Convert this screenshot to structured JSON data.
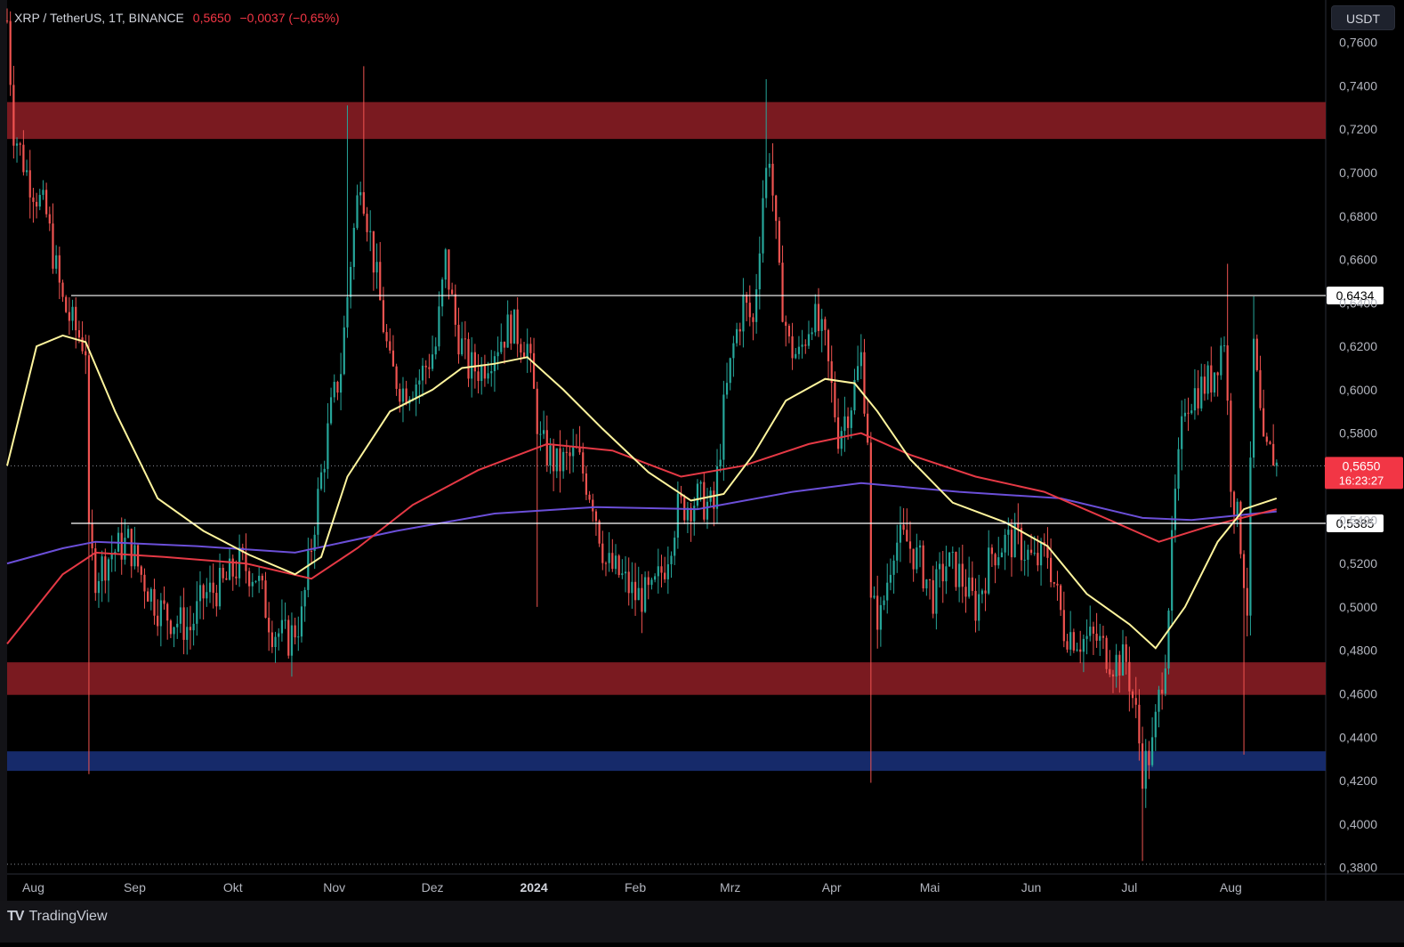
{
  "legend": {
    "symbol": "XRP / TetherUS, 1T, BINANCE",
    "last": "0,5650",
    "change": "−0,0037 (−0,65%)"
  },
  "currency_button": "USDT",
  "branding": {
    "name": "TradingView",
    "logo": "TV"
  },
  "colors": {
    "background": "#000000",
    "up": "#26a69a",
    "down": "#ef5350",
    "zone_red": "#7a1a20",
    "zone_blue": "#162a6a",
    "ma_yellow": "#fff59d",
    "ma_red": "#e53945",
    "ma_purple": "#6b4fd8",
    "hline": "#ffffff"
  },
  "chart_data": {
    "type": "candlestick",
    "symbol": "XRP / TetherUS",
    "interval": "1T",
    "exchange": "BINANCE",
    "ylim": [
      0.377,
      0.7795
    ],
    "y_ticks": [
      "0,3800",
      "0,4000",
      "0,4200",
      "0,4400",
      "0,4600",
      "0,4800",
      "0,5000",
      "0,5200",
      "0,5400",
      "0,5600",
      "0,5800",
      "0,6000",
      "0,6200",
      "0,6400",
      "0,6600",
      "0,6800",
      "0,7000",
      "0,7200",
      "0,7400",
      "0,7600"
    ],
    "x_range": [
      "2023-07-24",
      "2024-08-30"
    ],
    "x_ticks": [
      {
        "label": "Aug",
        "date": "2023-08-01"
      },
      {
        "label": "Sep",
        "date": "2023-09-01"
      },
      {
        "label": "Okt",
        "date": "2023-10-01"
      },
      {
        "label": "Nov",
        "date": "2023-11-01"
      },
      {
        "label": "Dez",
        "date": "2023-12-01"
      },
      {
        "label": "2024",
        "date": "2024-01-01",
        "bold": true
      },
      {
        "label": "Feb",
        "date": "2024-02-01"
      },
      {
        "label": "Mrz",
        "date": "2024-03-01"
      },
      {
        "label": "Apr",
        "date": "2024-04-01"
      },
      {
        "label": "Mai",
        "date": "2024-05-01"
      },
      {
        "label": "Jun",
        "date": "2024-06-01"
      },
      {
        "label": "Jul",
        "date": "2024-07-01"
      },
      {
        "label": "Aug",
        "date": "2024-08-01"
      }
    ],
    "close_path": [
      [
        "2023-07-24",
        0.77
      ],
      [
        "2023-07-26",
        0.72
      ],
      [
        "2023-07-30",
        0.7
      ],
      [
        "2023-08-05",
        0.68
      ],
      [
        "2023-08-08",
        0.655
      ],
      [
        "2023-08-10",
        0.64
      ],
      [
        "2023-08-13",
        0.63
      ],
      [
        "2023-08-17",
        0.62
      ],
      [
        "2023-08-18",
        0.53
      ],
      [
        "2023-08-20",
        0.515
      ],
      [
        "2023-08-25",
        0.525
      ],
      [
        "2023-08-30",
        0.53
      ],
      [
        "2023-09-03",
        0.515
      ],
      [
        "2023-09-08",
        0.5
      ],
      [
        "2023-09-12",
        0.495
      ],
      [
        "2023-09-18",
        0.49
      ],
      [
        "2023-09-22",
        0.505
      ],
      [
        "2023-09-28",
        0.51
      ],
      [
        "2023-10-03",
        0.52
      ],
      [
        "2023-10-08",
        0.515
      ],
      [
        "2023-10-13",
        0.49
      ],
      [
        "2023-10-18",
        0.485
      ],
      [
        "2023-10-22",
        0.495
      ],
      [
        "2023-10-26",
        0.54
      ],
      [
        "2023-10-31",
        0.59
      ],
      [
        "2023-11-03",
        0.61
      ],
      [
        "2023-11-06",
        0.66
      ],
      [
        "2023-11-09",
        0.7
      ],
      [
        "2023-11-12",
        0.67
      ],
      [
        "2023-11-15",
        0.64
      ],
      [
        "2023-11-18",
        0.61
      ],
      [
        "2023-11-22",
        0.6
      ],
      [
        "2023-11-27",
        0.605
      ],
      [
        "2023-12-02",
        0.62
      ],
      [
        "2023-12-05",
        0.66
      ],
      [
        "2023-12-08",
        0.63
      ],
      [
        "2023-12-12",
        0.61
      ],
      [
        "2023-12-16",
        0.61
      ],
      [
        "2023-12-20",
        0.62
      ],
      [
        "2023-12-25",
        0.63
      ],
      [
        "2023-12-30",
        0.62
      ],
      [
        "2024-01-03",
        0.575
      ],
      [
        "2024-01-08",
        0.565
      ],
      [
        "2024-01-14",
        0.57
      ],
      [
        "2024-01-19",
        0.55
      ],
      [
        "2024-01-23",
        0.52
      ],
      [
        "2024-01-27",
        0.515
      ],
      [
        "2024-02-01",
        0.505
      ],
      [
        "2024-02-06",
        0.505
      ],
      [
        "2024-02-10",
        0.52
      ],
      [
        "2024-02-14",
        0.545
      ],
      [
        "2024-02-20",
        0.55
      ],
      [
        "2024-02-25",
        0.545
      ],
      [
        "2024-02-28",
        0.59
      ],
      [
        "2024-03-02",
        0.62
      ],
      [
        "2024-03-05",
        0.64
      ],
      [
        "2024-03-08",
        0.63
      ],
      [
        "2024-03-11",
        0.69
      ],
      [
        "2024-03-13",
        0.71
      ],
      [
        "2024-03-16",
        0.65
      ],
      [
        "2024-03-19",
        0.62
      ],
      [
        "2024-03-22",
        0.615
      ],
      [
        "2024-03-26",
        0.635
      ],
      [
        "2024-03-30",
        0.62
      ],
      [
        "2024-04-03",
        0.58
      ],
      [
        "2024-04-07",
        0.595
      ],
      [
        "2024-04-10",
        0.615
      ],
      [
        "2024-04-12",
        0.58
      ],
      [
        "2024-04-13",
        0.5
      ],
      [
        "2024-04-16",
        0.495
      ],
      [
        "2024-04-20",
        0.53
      ],
      [
        "2024-04-24",
        0.53
      ],
      [
        "2024-04-28",
        0.52
      ],
      [
        "2024-05-02",
        0.505
      ],
      [
        "2024-05-06",
        0.52
      ],
      [
        "2024-05-10",
        0.515
      ],
      [
        "2024-05-15",
        0.5
      ],
      [
        "2024-05-20",
        0.525
      ],
      [
        "2024-05-24",
        0.53
      ],
      [
        "2024-05-28",
        0.53
      ],
      [
        "2024-06-02",
        0.52
      ],
      [
        "2024-06-06",
        0.525
      ],
      [
        "2024-06-11",
        0.49
      ],
      [
        "2024-06-16",
        0.485
      ],
      [
        "2024-06-21",
        0.485
      ],
      [
        "2024-06-26",
        0.475
      ],
      [
        "2024-06-30",
        0.475
      ],
      [
        "2024-07-03",
        0.45
      ],
      [
        "2024-07-05",
        0.425
      ],
      [
        "2024-07-08",
        0.435
      ],
      [
        "2024-07-12",
        0.48
      ],
      [
        "2024-07-15",
        0.55
      ],
      [
        "2024-07-18",
        0.595
      ],
      [
        "2024-07-22",
        0.6
      ],
      [
        "2024-07-26",
        0.605
      ],
      [
        "2024-07-30",
        0.625
      ],
      [
        "2024-08-01",
        0.56
      ],
      [
        "2024-08-04",
        0.53
      ],
      [
        "2024-08-06",
        0.5
      ],
      [
        "2024-08-08",
        0.62
      ],
      [
        "2024-08-11",
        0.57
      ],
      [
        "2024-08-14",
        0.57
      ],
      [
        "2024-08-15",
        0.565
      ]
    ],
    "spikes": [
      {
        "date": "2023-08-18",
        "low": 0.423
      },
      {
        "date": "2023-11-10",
        "high": 0.749
      },
      {
        "date": "2023-11-05",
        "high": 0.731
      },
      {
        "date": "2024-01-02",
        "low": 0.5
      },
      {
        "date": "2024-03-12",
        "high": 0.743
      },
      {
        "date": "2024-04-13",
        "low": 0.419
      },
      {
        "date": "2024-07-05",
        "low": 0.383
      },
      {
        "date": "2024-07-31",
        "high": 0.658
      },
      {
        "date": "2024-08-05",
        "low": 0.432
      },
      {
        "date": "2024-08-08",
        "high": 0.643
      }
    ],
    "ma_yellow": [
      [
        "2023-07-24",
        0.565
      ],
      [
        "2023-08-02",
        0.62
      ],
      [
        "2023-08-10",
        0.625
      ],
      [
        "2023-08-17",
        0.622
      ],
      [
        "2023-08-26",
        0.59
      ],
      [
        "2023-09-08",
        0.55
      ],
      [
        "2023-09-22",
        0.535
      ],
      [
        "2023-10-06",
        0.524
      ],
      [
        "2023-10-20",
        0.515
      ],
      [
        "2023-10-28",
        0.523
      ],
      [
        "2023-11-05",
        0.56
      ],
      [
        "2023-11-18",
        0.59
      ],
      [
        "2023-12-01",
        0.6
      ],
      [
        "2023-12-10",
        0.61
      ],
      [
        "2023-12-20",
        0.612
      ],
      [
        "2023-12-30",
        0.615
      ],
      [
        "2024-01-10",
        0.6
      ],
      [
        "2024-01-22",
        0.582
      ],
      [
        "2024-02-05",
        0.562
      ],
      [
        "2024-02-18",
        0.549
      ],
      [
        "2024-02-28",
        0.552
      ],
      [
        "2024-03-08",
        0.57
      ],
      [
        "2024-03-18",
        0.595
      ],
      [
        "2024-03-30",
        0.605
      ],
      [
        "2024-04-08",
        0.603
      ],
      [
        "2024-04-15",
        0.59
      ],
      [
        "2024-04-25",
        0.568
      ],
      [
        "2024-05-08",
        0.548
      ],
      [
        "2024-05-24",
        0.539
      ],
      [
        "2024-06-06",
        0.528
      ],
      [
        "2024-06-18",
        0.506
      ],
      [
        "2024-07-01",
        0.492
      ],
      [
        "2024-07-09",
        0.481
      ],
      [
        "2024-07-18",
        0.5
      ],
      [
        "2024-07-28",
        0.53
      ],
      [
        "2024-08-05",
        0.545
      ],
      [
        "2024-08-15",
        0.55
      ]
    ],
    "ma_red": [
      [
        "2023-07-24",
        0.483
      ],
      [
        "2023-08-10",
        0.515
      ],
      [
        "2023-08-20",
        0.525
      ],
      [
        "2023-09-10",
        0.523
      ],
      [
        "2023-10-05",
        0.52
      ],
      [
        "2023-10-25",
        0.513
      ],
      [
        "2023-11-08",
        0.527
      ],
      [
        "2023-11-25",
        0.547
      ],
      [
        "2023-12-15",
        0.563
      ],
      [
        "2024-01-05",
        0.575
      ],
      [
        "2024-01-25",
        0.572
      ],
      [
        "2024-02-15",
        0.56
      ],
      [
        "2024-03-05",
        0.565
      ],
      [
        "2024-03-25",
        0.575
      ],
      [
        "2024-04-10",
        0.58
      ],
      [
        "2024-04-25",
        0.57
      ],
      [
        "2024-05-15",
        0.56
      ],
      [
        "2024-06-05",
        0.553
      ],
      [
        "2024-06-25",
        0.54
      ],
      [
        "2024-07-10",
        0.53
      ],
      [
        "2024-07-25",
        0.537
      ],
      [
        "2024-08-15",
        0.545
      ]
    ],
    "ma_purple": [
      [
        "2023-07-24",
        0.52
      ],
      [
        "2023-08-10",
        0.527
      ],
      [
        "2023-08-20",
        0.53
      ],
      [
        "2023-09-20",
        0.528
      ],
      [
        "2023-10-20",
        0.525
      ],
      [
        "2023-11-20",
        0.535
      ],
      [
        "2023-12-20",
        0.543
      ],
      [
        "2024-01-20",
        0.546
      ],
      [
        "2024-02-20",
        0.545
      ],
      [
        "2024-03-20",
        0.553
      ],
      [
        "2024-04-10",
        0.557
      ],
      [
        "2024-05-10",
        0.553
      ],
      [
        "2024-06-10",
        0.55
      ],
      [
        "2024-07-05",
        0.541
      ],
      [
        "2024-07-20",
        0.54
      ],
      [
        "2024-08-15",
        0.544
      ]
    ],
    "zones": [
      {
        "from": 0.7155,
        "to": 0.7325,
        "color": "red"
      },
      {
        "from": 0.4595,
        "to": 0.4745,
        "color": "red"
      },
      {
        "from": 0.4245,
        "to": 0.4335,
        "color": "blue"
      }
    ],
    "hlines": [
      {
        "value": 0.6434,
        "label": "0,6434"
      },
      {
        "value": 0.5385,
        "label": "0,5385"
      }
    ],
    "price_marker": {
      "value": 0.565,
      "label": "0,5650",
      "countdown": "16:23:27"
    },
    "dotted_levels": [
      0.565,
      0.3815
    ]
  }
}
